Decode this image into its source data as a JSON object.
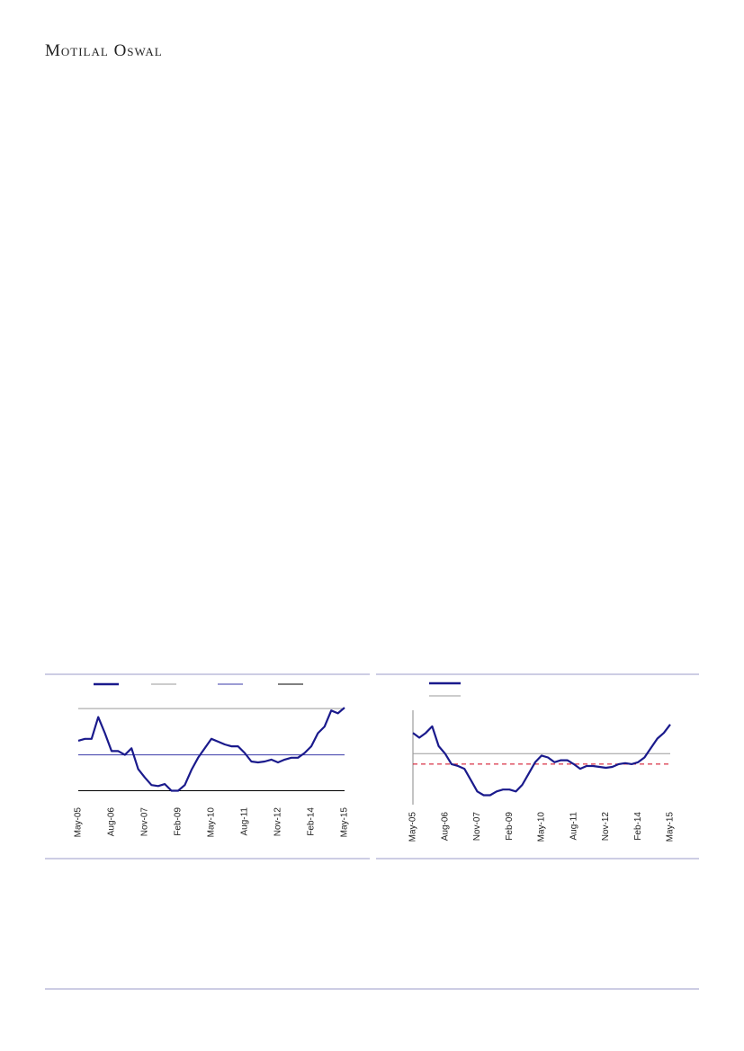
{
  "header": {
    "brand": "Motilal Oswal"
  },
  "chart_data": [
    {
      "type": "line",
      "categories": [
        "May-05",
        null,
        null,
        null,
        null,
        "Aug-06",
        null,
        null,
        null,
        null,
        "Nov-07",
        null,
        null,
        null,
        null,
        "Feb-09",
        null,
        null,
        null,
        null,
        "May-10",
        null,
        null,
        null,
        null,
        "Aug-11",
        null,
        null,
        null,
        null,
        "Nov-12",
        null,
        null,
        null,
        null,
        "Feb-14",
        null,
        null,
        null,
        null,
        "May-15"
      ],
      "series": [
        {
          "color": "#1a1a8c",
          "values": [
            63,
            65,
            65,
            88,
            71,
            52,
            52,
            48,
            55,
            33,
            24,
            16,
            15,
            17,
            10,
            10,
            16,
            32,
            45,
            55,
            65,
            62,
            59,
            57,
            57,
            50,
            41,
            40,
            41,
            43,
            40,
            43,
            45,
            45,
            50,
            57,
            71,
            78,
            95,
            92,
            98
          ]
        }
      ],
      "ref_lines": [
        {
          "value": 97,
          "color": "#9a9a9a"
        },
        {
          "value": 48,
          "color": "#3a3aa8"
        },
        {
          "value": 10,
          "color": "#000000"
        }
      ],
      "ylim": [
        0,
        100
      ],
      "left_axis": false
    },
    {
      "type": "line",
      "categories": [
        "May-05",
        null,
        null,
        null,
        null,
        "Aug-06",
        null,
        null,
        null,
        null,
        "Nov-07",
        null,
        null,
        null,
        null,
        "Feb-09",
        null,
        null,
        null,
        null,
        "May-10",
        null,
        null,
        null,
        null,
        "Aug-11",
        null,
        null,
        null,
        null,
        "Nov-12",
        null,
        null,
        null,
        null,
        "Feb-14",
        null,
        null,
        null,
        null,
        "May-15"
      ],
      "series": [
        {
          "color": "#1a1a8c",
          "values": [
            76,
            71,
            76,
            83,
            62,
            54,
            43,
            41,
            38,
            26,
            14,
            10,
            10,
            14,
            16,
            16,
            14,
            21,
            33,
            45,
            52,
            50,
            45,
            47,
            47,
            43,
            38,
            41,
            41,
            40,
            39,
            40,
            43,
            44,
            43,
            45,
            50,
            60,
            70,
            76,
            85
          ]
        }
      ],
      "ref_lines": [
        {
          "value": 54,
          "color": "#9a9a9a"
        },
        {
          "value": 43,
          "color": "#d0021b",
          "dashed": true
        }
      ],
      "ylim": [
        0,
        100
      ],
      "left_axis": true
    }
  ]
}
